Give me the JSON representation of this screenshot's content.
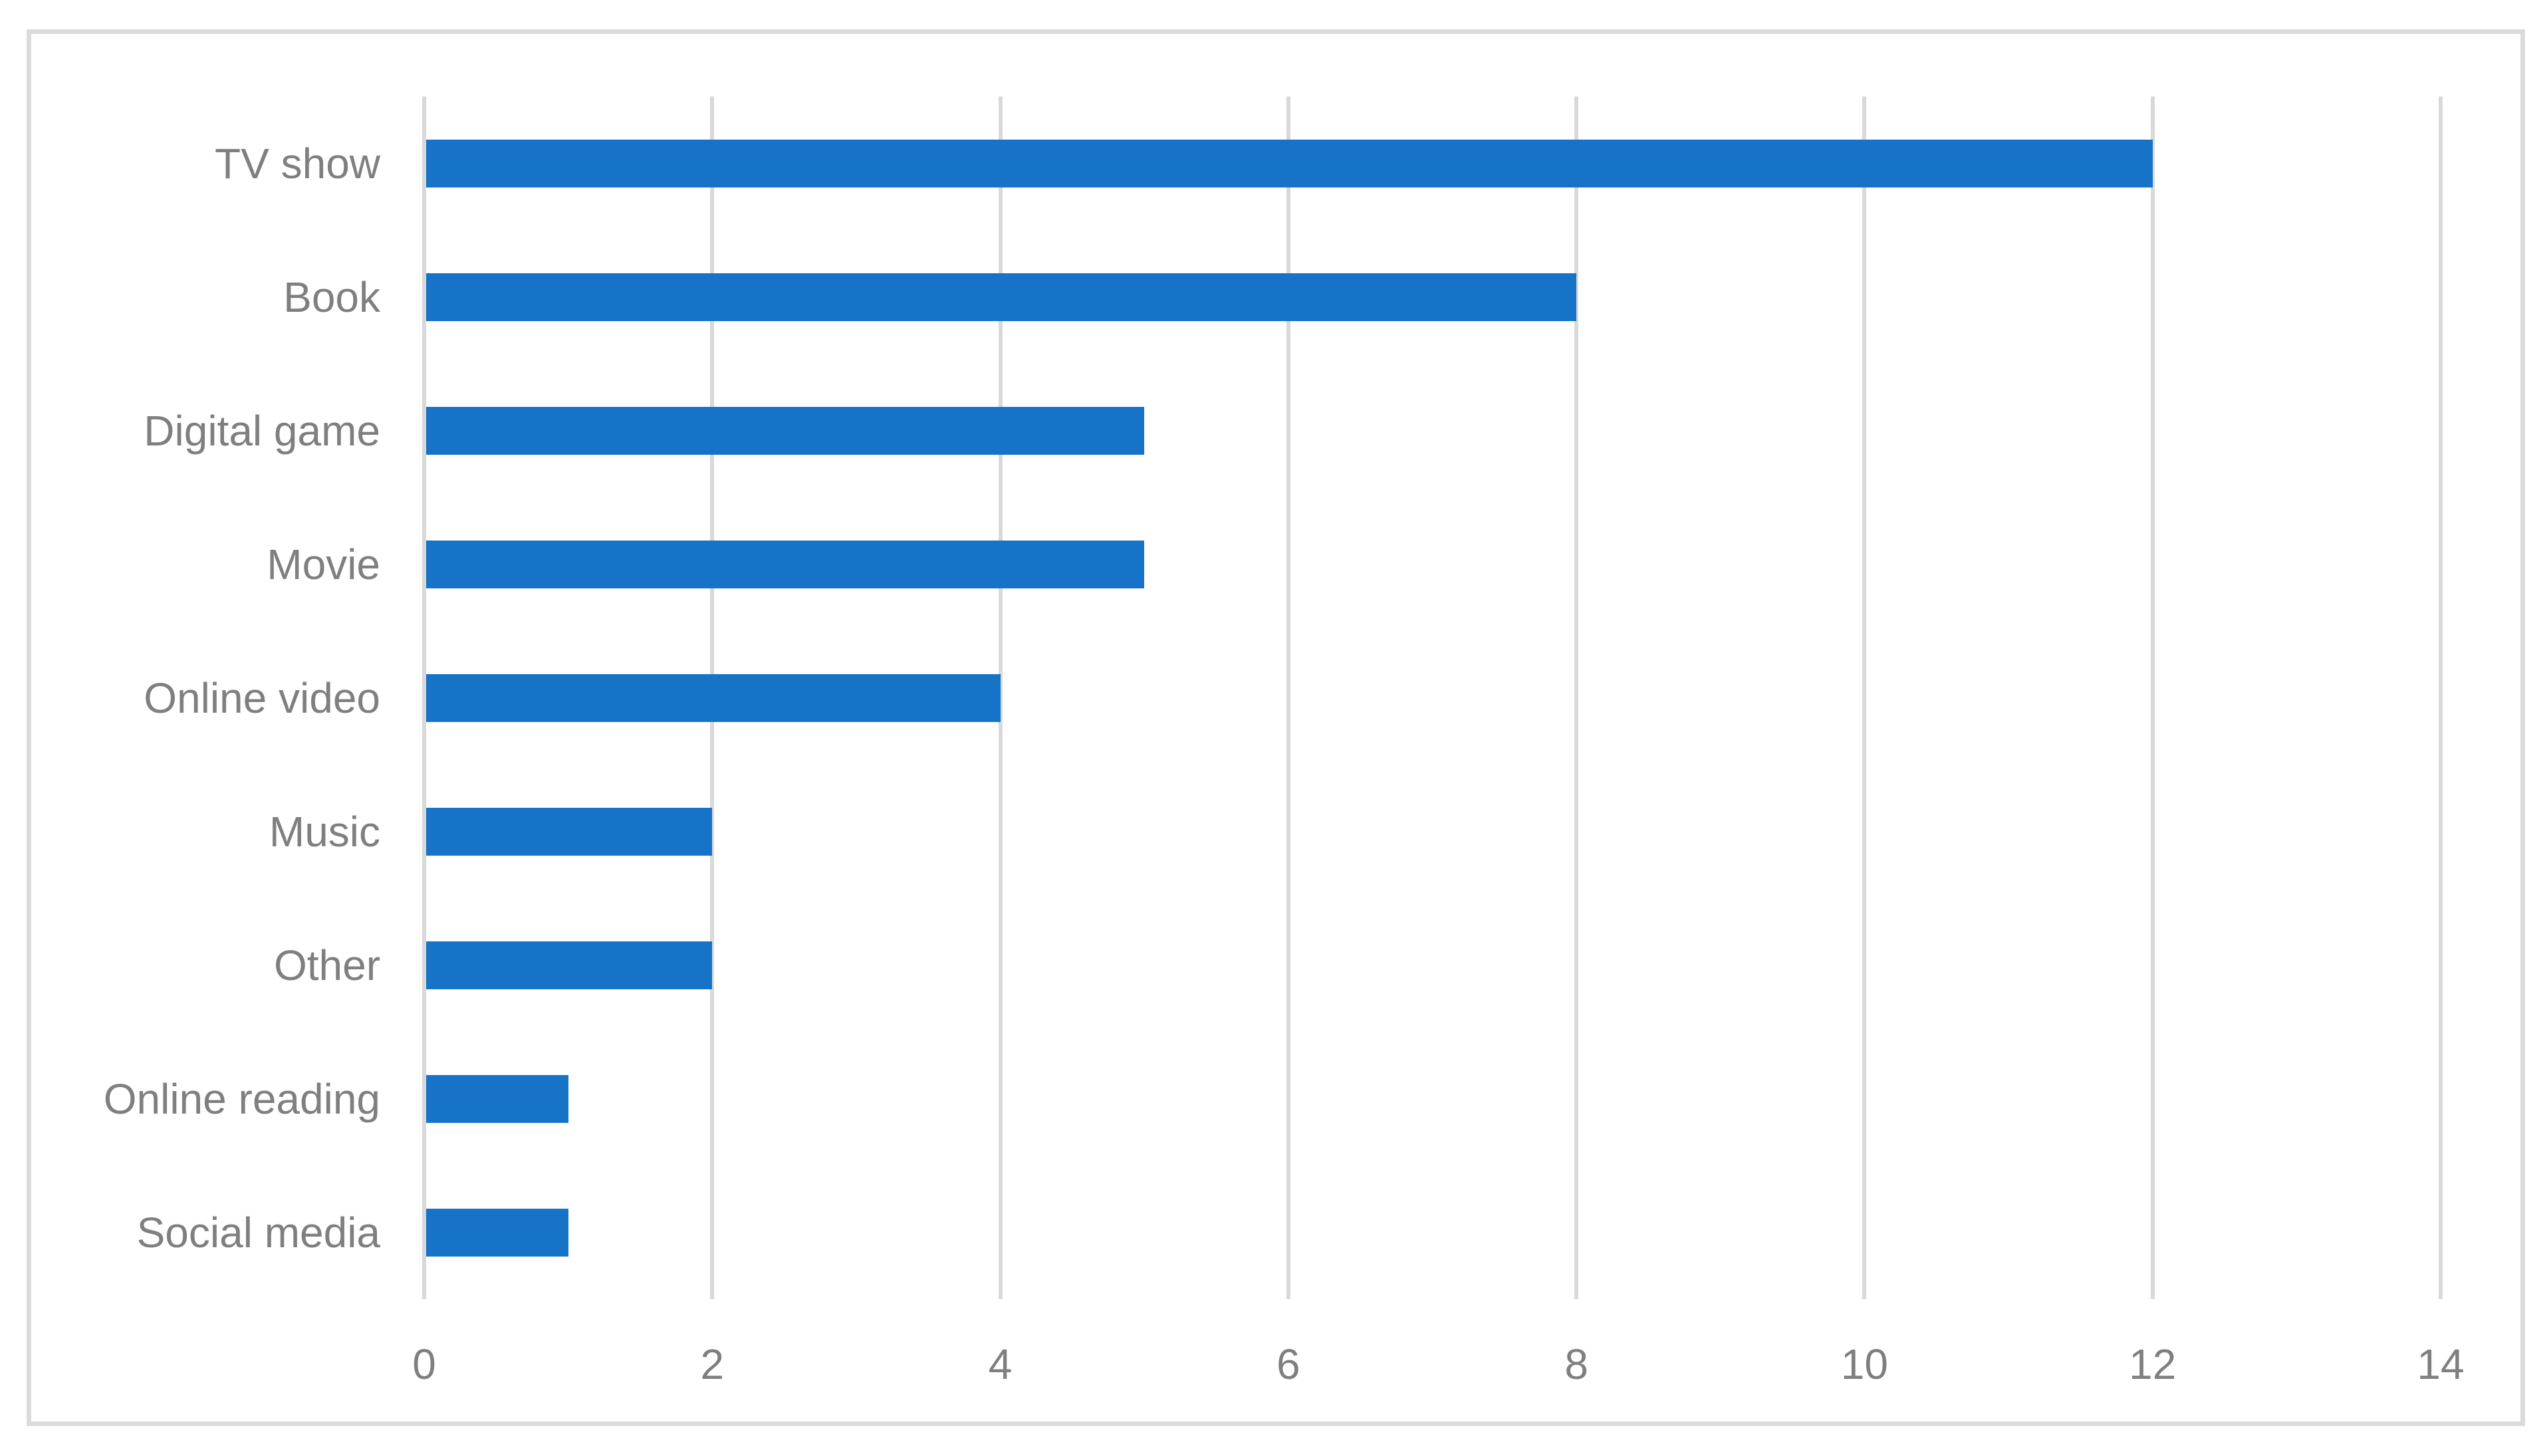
{
  "chart_data": {
    "type": "bar",
    "orientation": "horizontal",
    "title": "",
    "xlabel": "",
    "ylabel": "",
    "categories": [
      "TV show",
      "Book",
      "Digital game",
      "Movie",
      "Online video",
      "Music",
      "Other",
      "Online reading",
      "Social media"
    ],
    "values": [
      12,
      8,
      5,
      5,
      4,
      2,
      2,
      1,
      1
    ],
    "xlim": [
      0,
      14
    ],
    "x_ticks": [
      0,
      2,
      4,
      6,
      8,
      10,
      12,
      14
    ],
    "grid": "vertical-only",
    "legend": "none",
    "colors": {
      "bar": "#1673c8",
      "gridline": "#d9d9d9",
      "axis_text": "#7f7f7f",
      "frame_border": "#dbdbdb",
      "background": "#ffffff"
    }
  }
}
